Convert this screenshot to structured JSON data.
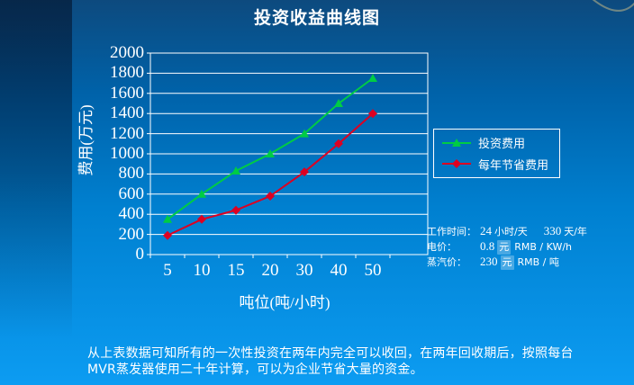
{
  "slide": {
    "title": "投资收益曲线图",
    "footer": "从上表数据可知所有的一次性投资在两年内完全可以收回，在两年回收期后，按照每台MVR蒸发器使用二十年计算，可以为企业节省大量的资金。"
  },
  "chart_data": {
    "type": "line",
    "title": "投资收益曲线图",
    "categories": [
      "5",
      "10",
      "15",
      "20",
      "30",
      "40",
      "50"
    ],
    "series": [
      {
        "name": "投资费用",
        "color": "#00cc44",
        "marker": "triangle",
        "values": [
          350,
          600,
          830,
          1000,
          1200,
          1500,
          1750
        ]
      },
      {
        "name": "每年节省费用",
        "color": "#dd0022",
        "marker": "diamond",
        "values": [
          190,
          350,
          440,
          580,
          820,
          1100,
          1400
        ]
      }
    ],
    "xlabel": "吨位(吨/小时)",
    "ylabel": "费用(万元)",
    "ylim": [
      0,
      2000
    ],
    "ytick_step": 200,
    "grid": true,
    "axis_color": "#ffffff",
    "legend_position": "right"
  },
  "info_panel": {
    "rows": [
      {
        "label": "工作时间：",
        "parts": [
          {
            "num": "24",
            "unit": "小时/天",
            "highlight": false
          },
          {
            "num": "330",
            "unit": "天/年",
            "highlight": false
          }
        ]
      },
      {
        "label": "电价：",
        "parts": [
          {
            "num": "0.8",
            "unit": "元",
            "highlight": true
          },
          {
            "text": "RMB / KW/h"
          }
        ]
      },
      {
        "label": "蒸汽价：",
        "parts": [
          {
            "num": "230",
            "unit": "元",
            "highlight": true
          },
          {
            "text": "RMB / 吨"
          }
        ]
      }
    ]
  },
  "colors": {
    "background_top": "#0d4a7e",
    "background_bottom": "#0c9cf2",
    "text": "#ffffff",
    "swoosh": "#9b9f85"
  }
}
